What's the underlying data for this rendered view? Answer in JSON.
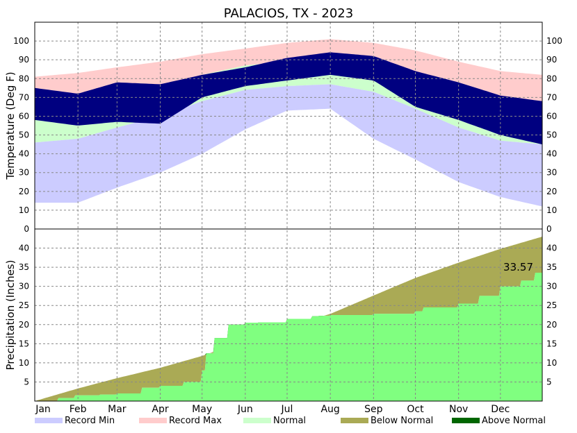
{
  "chart_data": [
    {
      "type": "area",
      "title": "PALACIOS, TX - 2023",
      "ylabel": "Temperature (Deg F)",
      "xlabel": "",
      "ylim": [
        0,
        110
      ],
      "yticks": [
        0,
        10,
        20,
        30,
        40,
        50,
        60,
        70,
        80,
        90,
        100
      ],
      "grid": true,
      "months": [
        "Jan",
        "Feb",
        "Mar",
        "Apr",
        "May",
        "Jun",
        "Jul",
        "Aug",
        "Sep",
        "Oct",
        "Nov",
        "Dec"
      ],
      "colors": {
        "record_min": "#ccccff",
        "record_max": "#ffcccc",
        "normal": "#ccffcc",
        "observed": "#000080"
      },
      "series": [
        {
          "name": "Record Max",
          "x": [
            1,
            32,
            60,
            91,
            121,
            152,
            182,
            213,
            244,
            274,
            305,
            335,
            365
          ],
          "values": [
            81,
            83,
            86,
            89,
            93,
            96,
            99,
            101,
            99,
            95,
            89,
            84,
            82
          ]
        },
        {
          "name": "Normal High",
          "x": [
            1,
            32,
            60,
            91,
            121,
            152,
            182,
            213,
            244,
            274,
            305,
            335,
            365
          ],
          "values": [
            63,
            65,
            70,
            76,
            82,
            87,
            89,
            90,
            87,
            81,
            72,
            65,
            63
          ]
        },
        {
          "name": "Normal Low",
          "x": [
            1,
            32,
            60,
            91,
            121,
            152,
            182,
            213,
            244,
            274,
            305,
            335,
            365
          ],
          "values": [
            46,
            48,
            54,
            60,
            68,
            74,
            76,
            77,
            73,
            64,
            54,
            47,
            45
          ]
        },
        {
          "name": "Record Min",
          "x": [
            1,
            32,
            60,
            91,
            121,
            152,
            182,
            213,
            244,
            274,
            305,
            335,
            365
          ],
          "values": [
            14,
            14,
            22,
            30,
            40,
            53,
            63,
            64,
            48,
            37,
            25,
            17,
            12
          ]
        },
        {
          "name": "Observed High",
          "x": [
            1,
            32,
            60,
            91,
            121,
            152,
            182,
            213,
            244,
            274,
            305,
            335,
            365
          ],
          "values": [
            75,
            72,
            78,
            77,
            82,
            86,
            91,
            94,
            92,
            84,
            78,
            71,
            68
          ]
        },
        {
          "name": "Observed Low",
          "x": [
            1,
            32,
            60,
            91,
            121,
            152,
            182,
            213,
            244,
            274,
            305,
            335,
            365
          ],
          "values": [
            58,
            55,
            57,
            56,
            70,
            76,
            79,
            82,
            79,
            65,
            58,
            50,
            45
          ]
        }
      ]
    },
    {
      "type": "area",
      "ylabel": "Precipitation (Inches)",
      "xlabel": "",
      "ylim": [
        0,
        45
      ],
      "yticks": [
        5,
        10,
        15,
        20,
        25,
        30,
        35,
        40
      ],
      "grid": true,
      "months": [
        "Jan",
        "Feb",
        "Mar",
        "Apr",
        "May",
        "Jun",
        "Jul",
        "Aug",
        "Sep",
        "Oct",
        "Nov",
        "Dec"
      ],
      "annotation": "33.57",
      "colors": {
        "observed": "#80ff80",
        "below_normal": "#aaaa55",
        "above_normal": "#006600"
      },
      "series": [
        {
          "name": "Normal",
          "x": [
            1,
            32,
            60,
            91,
            121,
            152,
            182,
            213,
            244,
            274,
            305,
            335,
            365
          ],
          "values": [
            0,
            3.3,
            6.0,
            8.7,
            11.8,
            15.8,
            19.5,
            22.8,
            27.6,
            32.2,
            36.2,
            39.8,
            43.0
          ]
        },
        {
          "name": "Observed",
          "x": [
            1,
            18,
            30,
            48,
            60,
            78,
            91,
            108,
            121,
            124,
            130,
            140,
            152,
            162,
            182,
            200,
            205,
            213,
            244,
            274,
            280,
            305,
            320,
            335,
            350,
            360,
            365
          ],
          "values": [
            0,
            0.8,
            1.5,
            1.7,
            2.0,
            3.5,
            4.0,
            5.0,
            8.0,
            12.5,
            16.5,
            20.0,
            20.5,
            20.6,
            21.5,
            22.2,
            22.3,
            22.5,
            22.8,
            23.5,
            24.5,
            25.5,
            27.5,
            30.0,
            31.5,
            33.57,
            33.57
          ]
        }
      ]
    }
  ],
  "legend": [
    {
      "label": "Record Min",
      "color": "#ccccff"
    },
    {
      "label": "Record Max",
      "color": "#ffcccc"
    },
    {
      "label": "Normal",
      "color": "#ccffcc"
    },
    {
      "label": "Below Normal",
      "color": "#aaaa55"
    },
    {
      "label": "Above Normal",
      "color": "#006600"
    }
  ]
}
